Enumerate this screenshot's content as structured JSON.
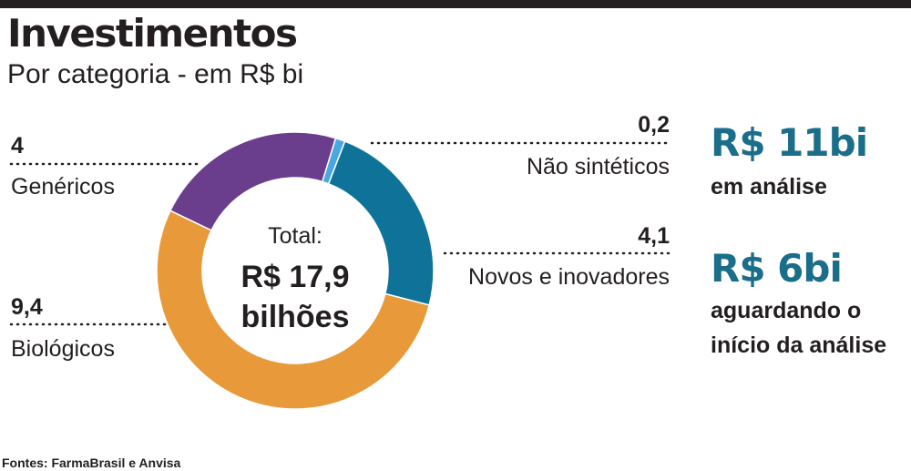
{
  "header": {
    "title": "Investimentos",
    "subtitle": "Por categoria - em R$ bi"
  },
  "chart_data": {
    "type": "pie",
    "title": "Investimentos",
    "subtitle": "Por categoria - em R$ bi",
    "slices": [
      {
        "label": "Não sintéticos",
        "value": 0.2,
        "value_label": "0,2",
        "color": "#4aa8de"
      },
      {
        "label": "Novos e inovadores",
        "value": 4.1,
        "value_label": "4,1",
        "color": "#0f7399"
      },
      {
        "label": "Biológicos",
        "value": 9.4,
        "value_label": "9,4",
        "color": "#e8993a"
      },
      {
        "label": "Genéricos",
        "value": 4,
        "value_label": "4",
        "color": "#6a3e8c"
      }
    ],
    "center": {
      "label": "Total:",
      "value_line1": "R$ 17,9",
      "value_line2": "bilhões"
    },
    "unit": "R$ bi"
  },
  "side": {
    "box1_big": "R$ 11bi",
    "box1_text": "em análise",
    "box2_big": "R$ 6bi",
    "box2_line1": "aguardando o",
    "box2_line2": "início da análise"
  },
  "source": "Fontes: FarmaBrasil e Anvisa"
}
